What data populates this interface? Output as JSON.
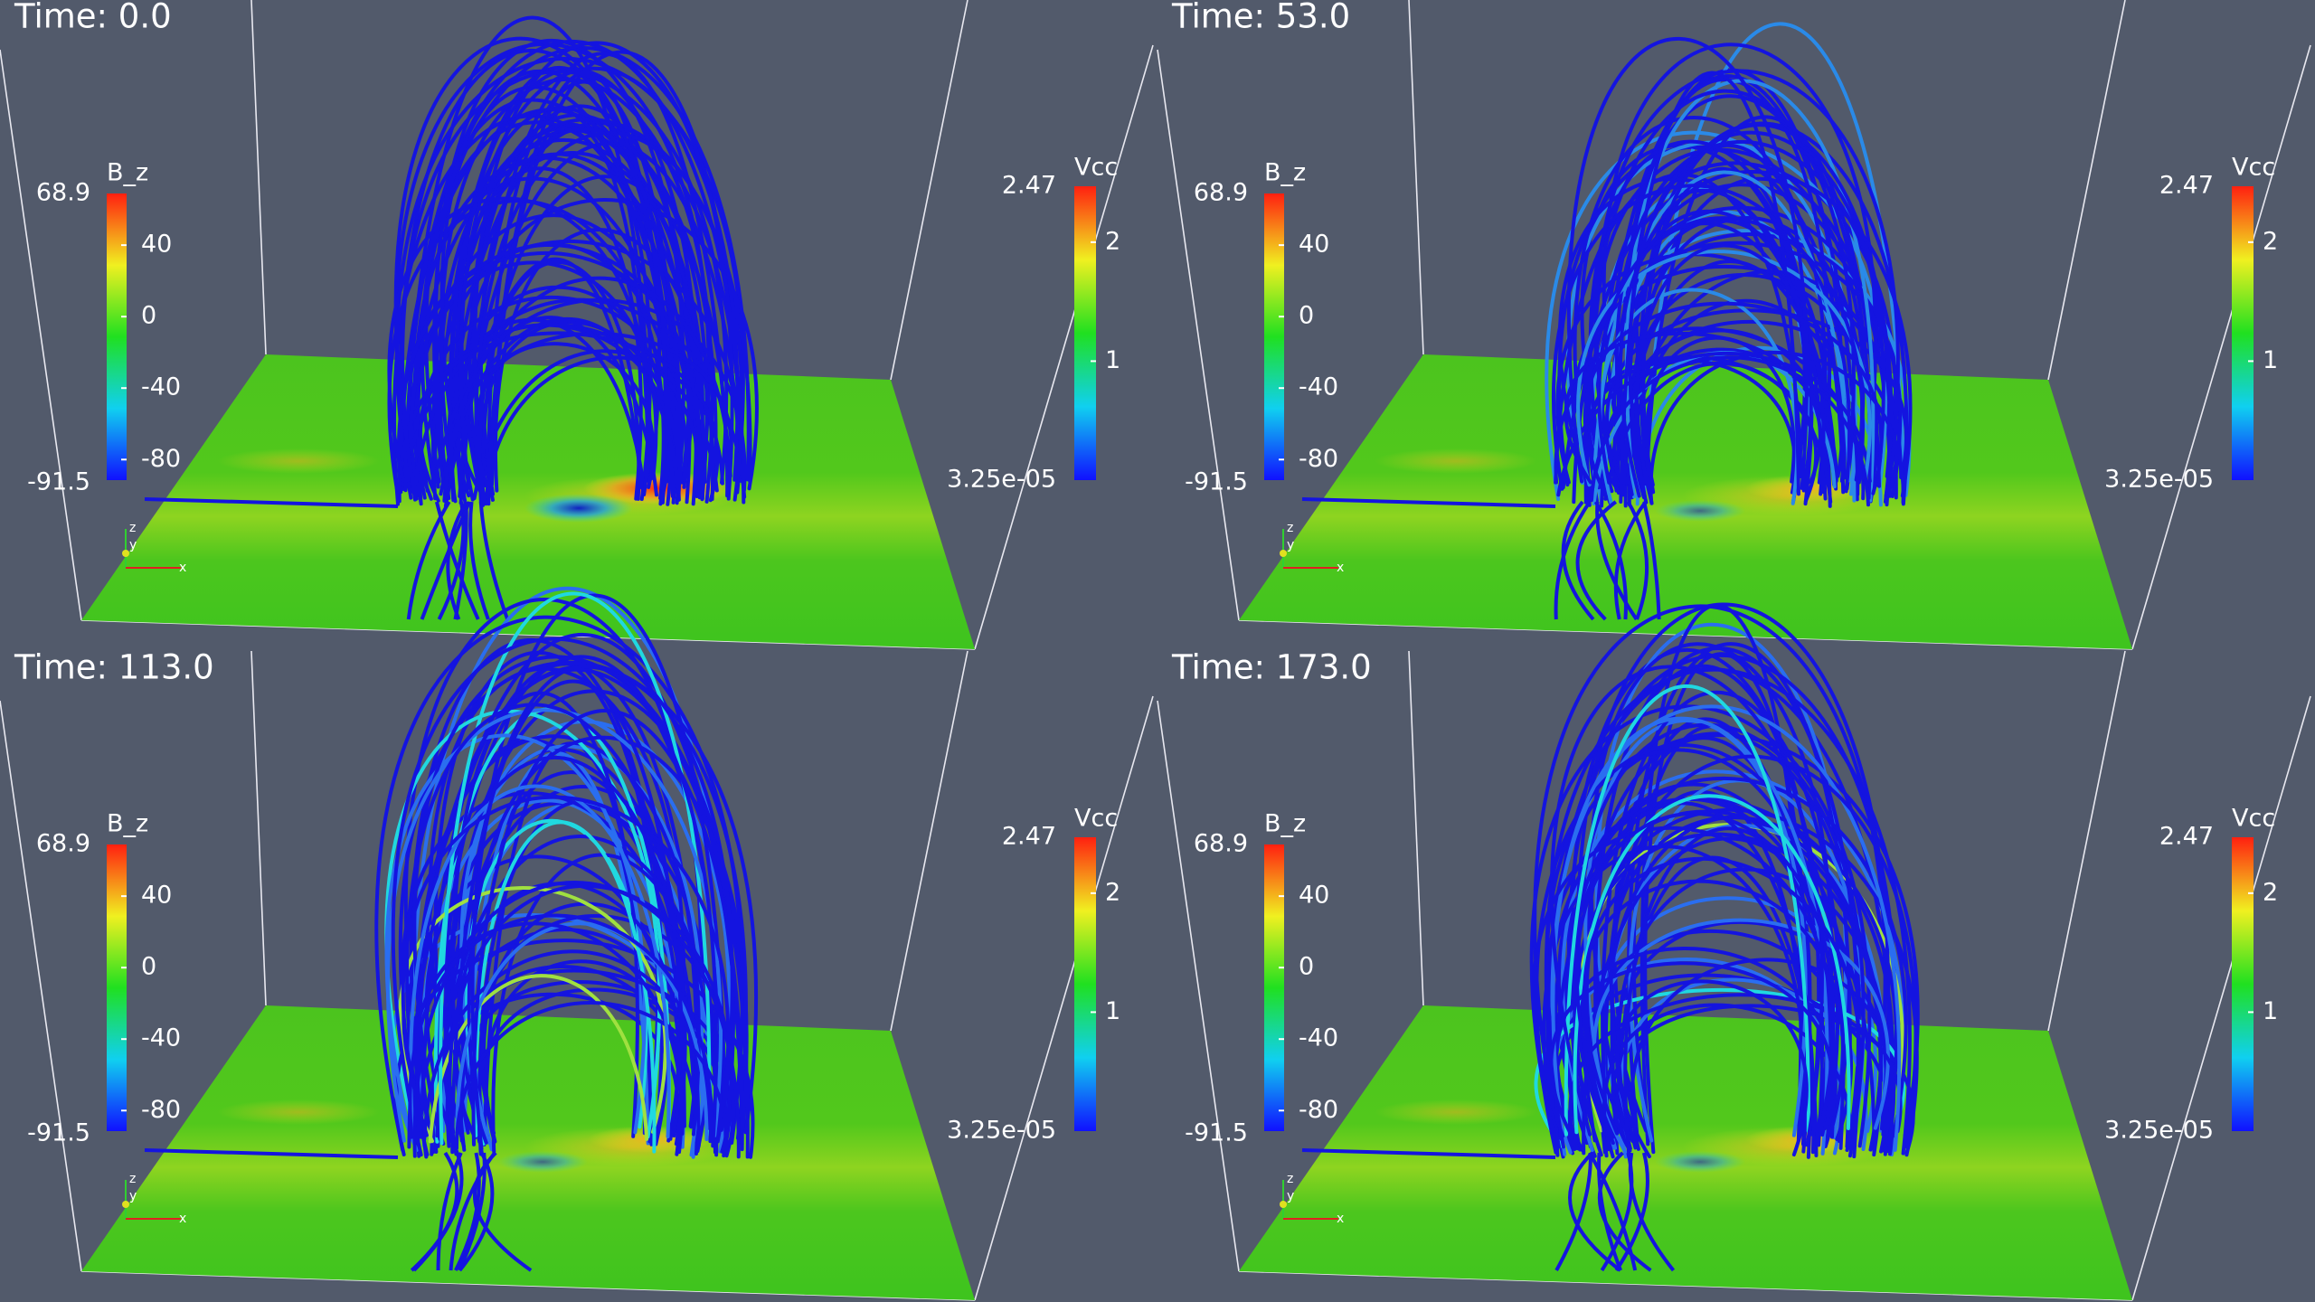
{
  "panels": [
    {
      "time": "Time: 0.0",
      "bz_bar": {
        "title": "B_z",
        "range": [
          -91.5,
          68.9
        ],
        "ticks": [
          40,
          0,
          -40,
          -80
        ]
      },
      "vcc_bar": {
        "title": "Vcc",
        "range": [
          {
            "value": 3.25e-05,
            "label": "3.25e-05"
          },
          2.47
        ],
        "ticks": [
          2,
          1
        ]
      },
      "axes": [
        "z",
        "y",
        "x"
      ]
    },
    {
      "time": "Time: 53.0",
      "bz_bar": {
        "title": "B_z",
        "range": [
          -91.5,
          68.9
        ],
        "ticks": [
          40,
          0,
          -40,
          -80
        ]
      },
      "vcc_bar": {
        "title": "Vcc",
        "range": [
          {
            "value": 3.25e-05,
            "label": "3.25e-05"
          },
          2.47
        ],
        "ticks": [
          2,
          1
        ]
      },
      "axes": [
        "z",
        "y",
        "x"
      ]
    },
    {
      "time": "Time: 113.0",
      "bz_bar": {
        "title": "B_z",
        "range": [
          -91.5,
          68.9
        ],
        "ticks": [
          40,
          0,
          -40,
          -80
        ]
      },
      "vcc_bar": {
        "title": "Vcc",
        "range": [
          {
            "value": 3.25e-05,
            "label": "3.25e-05"
          },
          2.47
        ],
        "ticks": [
          2,
          1
        ]
      },
      "axes": [
        "z",
        "y",
        "x"
      ]
    },
    {
      "time": "Time: 173.0",
      "bz_bar": {
        "title": "B_z",
        "range": [
          -91.5,
          68.9
        ],
        "ticks": [
          40,
          0,
          -40,
          -80
        ]
      },
      "vcc_bar": {
        "title": "Vcc",
        "range": [
          {
            "value": 3.25e-05,
            "label": "3.25e-05"
          },
          2.47
        ],
        "ticks": [
          2,
          1
        ]
      },
      "axes": [
        "z",
        "y",
        "x"
      ]
    }
  ]
}
